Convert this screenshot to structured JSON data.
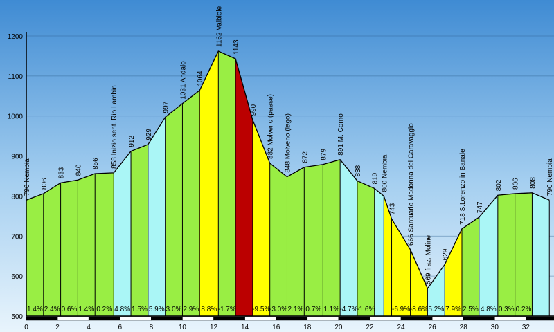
{
  "chart_data": {
    "type": "area",
    "xlim": [
      0,
      33.8
    ],
    "ylim": [
      500,
      1200
    ],
    "x_ticks": [
      0,
      2,
      4,
      6,
      8,
      10,
      12,
      14,
      16,
      18,
      20,
      22,
      24,
      26,
      28,
      30,
      32
    ],
    "y_ticks": [
      500,
      600,
      700,
      800,
      900,
      1000,
      1100,
      1200
    ],
    "grid": "horizontal",
    "profile": [
      {
        "x": 0.0,
        "y": 790,
        "label": "790 Nembia"
      },
      {
        "x": 1.1,
        "y": 806,
        "label": "806"
      },
      {
        "x": 2.2,
        "y": 833,
        "label": "833"
      },
      {
        "x": 3.3,
        "y": 840,
        "label": "840"
      },
      {
        "x": 4.4,
        "y": 856,
        "label": "856"
      },
      {
        "x": 5.6,
        "y": 858,
        "label": "858 Inizio sent. Rio Lambin"
      },
      {
        "x": 6.7,
        "y": 912,
        "label": "912"
      },
      {
        "x": 7.8,
        "y": 929,
        "label": "929"
      },
      {
        "x": 8.9,
        "y": 997,
        "label": "997"
      },
      {
        "x": 10.0,
        "y": 1031,
        "label": "1031 Andalo"
      },
      {
        "x": 11.1,
        "y": 1064,
        "label": "1064"
      },
      {
        "x": 12.3,
        "y": 1162,
        "label": "1162 Valbiole"
      },
      {
        "x": 13.4,
        "y": 1143,
        "label": "1143"
      },
      {
        "x": 14.5,
        "y": 990,
        "label": "990"
      },
      {
        "x": 15.6,
        "y": 882,
        "label": "882 Molveno (paese)"
      },
      {
        "x": 16.7,
        "y": 848,
        "label": "848 Molveno (lago)"
      },
      {
        "x": 17.8,
        "y": 872,
        "label": "872"
      },
      {
        "x": 19.0,
        "y": 879,
        "label": "879"
      },
      {
        "x": 20.1,
        "y": 891,
        "label": "891 M. Corno"
      },
      {
        "x": 21.2,
        "y": 838,
        "label": "838"
      },
      {
        "x": 22.3,
        "y": 819,
        "label": "819"
      },
      {
        "x": 22.9,
        "y": 800,
        "label": "800 Nembia"
      },
      {
        "x": 23.4,
        "y": 743,
        "label": "743"
      },
      {
        "x": 24.6,
        "y": 666,
        "label": "666 Santuario Madonna del Caravaggio"
      },
      {
        "x": 25.7,
        "y": 569,
        "label": "569 fraz. Moline"
      },
      {
        "x": 26.8,
        "y": 629,
        "label": "629"
      },
      {
        "x": 27.9,
        "y": 718,
        "label": "718 S.Lorenzo in Banale"
      },
      {
        "x": 29.0,
        "y": 747,
        "label": "747"
      },
      {
        "x": 30.2,
        "y": 802,
        "label": "802"
      },
      {
        "x": 31.3,
        "y": 806,
        "label": "806"
      },
      {
        "x": 32.4,
        "y": 808,
        "label": "808"
      },
      {
        "x": 33.5,
        "y": 790,
        "label": "790 Nembia"
      }
    ],
    "segments": [
      {
        "grade": "1.4%",
        "color": "#99ee44"
      },
      {
        "grade": "2.4%",
        "color": "#99ee44"
      },
      {
        "grade": "0.6%",
        "color": "#99ee44"
      },
      {
        "grade": "1.4%",
        "color": "#99ee44"
      },
      {
        "grade": "0.2%",
        "color": "#99ee44"
      },
      {
        "grade": "4.8%",
        "color": "#aaf6f6"
      },
      {
        "grade": "1.5%",
        "color": "#99ee44"
      },
      {
        "grade": "5.9%",
        "color": "#aaf6f6"
      },
      {
        "grade": "3.0%",
        "color": "#99ee44"
      },
      {
        "grade": "2.9%",
        "color": "#99ee44"
      },
      {
        "grade": "8.8%",
        "color": "#ffff00"
      },
      {
        "grade": "-1.7%",
        "color": "#99ee44"
      },
      {
        "grade": "",
        "color": "#bb0000"
      },
      {
        "grade": "-9.5%",
        "color": "#ffff00"
      },
      {
        "grade": "-3.0%",
        "color": "#99ee44"
      },
      {
        "grade": "2.1%",
        "color": "#99ee44"
      },
      {
        "grade": "0.7%",
        "color": "#99ee44"
      },
      {
        "grade": "1.1%",
        "color": "#99ee44"
      },
      {
        "grade": "-4.7%",
        "color": "#aaf6f6"
      },
      {
        "grade": "-1.6%",
        "color": "#99ee44"
      },
      {
        "grade": "",
        "color": "#aaf6f6"
      },
      {
        "grade": "",
        "color": "#ffff00"
      },
      {
        "grade": "-6.9%",
        "color": "#ffff00"
      },
      {
        "grade": "-8.6%",
        "color": "#ffff00"
      },
      {
        "grade": "5.2%",
        "color": "#aaf6f6"
      },
      {
        "grade": "7.9%",
        "color": "#ffff00"
      },
      {
        "grade": "2.5%",
        "color": "#99ee44"
      },
      {
        "grade": "4.8%",
        "color": "#aaf6f6"
      },
      {
        "grade": "0.3%",
        "color": "#99ee44"
      },
      {
        "grade": "0.2%",
        "color": "#99ee44"
      },
      {
        "grade": "",
        "color": "#aaf6f6"
      }
    ]
  }
}
